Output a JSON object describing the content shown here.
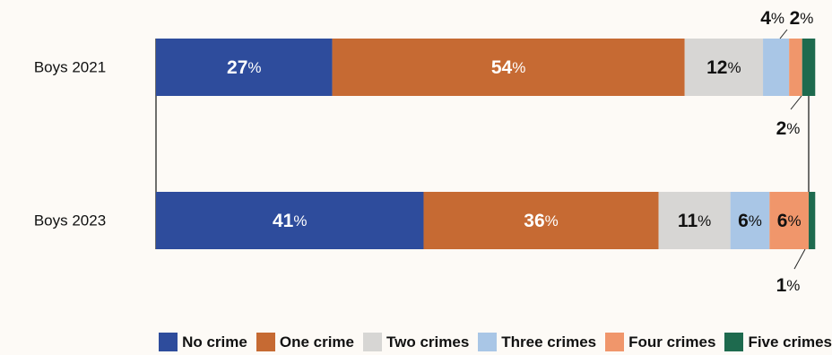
{
  "chart_data": {
    "type": "bar",
    "orientation": "horizontal",
    "stacked": true,
    "categories": [
      "Boys 2021",
      "Boys 2023"
    ],
    "series": [
      {
        "name": "No crime",
        "color": "#2e4c9c",
        "values": [
          27,
          41
        ],
        "labels": [
          "27",
          "41"
        ]
      },
      {
        "name": "One crime",
        "color": "#c66a33",
        "values": [
          54,
          36
        ],
        "labels": [
          "54",
          "36"
        ]
      },
      {
        "name": "Two crimes",
        "color": "#d7d6d4",
        "values": [
          12,
          11
        ],
        "labels": [
          "12",
          "11"
        ]
      },
      {
        "name": "Three crimes",
        "color": "#a9c6e6",
        "values": [
          4,
          6
        ],
        "labels": [
          "4",
          "6"
        ]
      },
      {
        "name": "Four crimes",
        "color": "#f0966b",
        "values": [
          2,
          6
        ],
        "labels": [
          "2",
          "6"
        ]
      },
      {
        "name": "Five crimes",
        "color": "#1e6a4e",
        "values": [
          2,
          1
        ],
        "labels": [
          "2",
          "1"
        ]
      }
    ],
    "percent_sign": "%",
    "xlim": [
      0,
      100
    ],
    "legend_position": "bottom-right",
    "grid": false
  }
}
